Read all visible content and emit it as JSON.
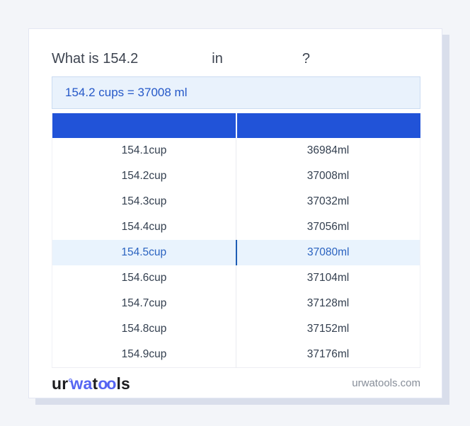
{
  "question": {
    "prefix": "What is 154.2",
    "connector": "in",
    "suffix": "?"
  },
  "result": {
    "text": "154.2 cups = 37008 ml"
  },
  "table": {
    "headers": [
      "",
      ""
    ],
    "rows": [
      {
        "cup": "154.1cup",
        "ml": "36984ml",
        "highlight": false
      },
      {
        "cup": "154.2cup",
        "ml": "37008ml",
        "highlight": false
      },
      {
        "cup": "154.3cup",
        "ml": "37032ml",
        "highlight": false
      },
      {
        "cup": "154.4cup",
        "ml": "37056ml",
        "highlight": false
      },
      {
        "cup": "154.5cup",
        "ml": "37080ml",
        "highlight": true
      },
      {
        "cup": "154.6cup",
        "ml": "37104ml",
        "highlight": false
      },
      {
        "cup": "154.7cup",
        "ml": "37128ml",
        "highlight": false
      },
      {
        "cup": "154.8cup",
        "ml": "37152ml",
        "highlight": false
      },
      {
        "cup": "154.9cup",
        "ml": "37176ml",
        "highlight": false
      }
    ]
  },
  "footer": {
    "logo": {
      "p1": "ur",
      "p2": "wa",
      "p3": "t",
      "p4": "oo",
      "p5": "ls"
    },
    "site": "urwatools.com"
  },
  "colors": {
    "page_background": "#f3f5f9",
    "header_blue": "#2153d8",
    "result_background": "#e9f2fc",
    "result_text": "#2558c8",
    "highlight_row_background": "#e9f3fd",
    "highlight_row_text": "#2b63c0",
    "logo_accent": "#5565f2",
    "card_shadow": "#d9deeb"
  }
}
